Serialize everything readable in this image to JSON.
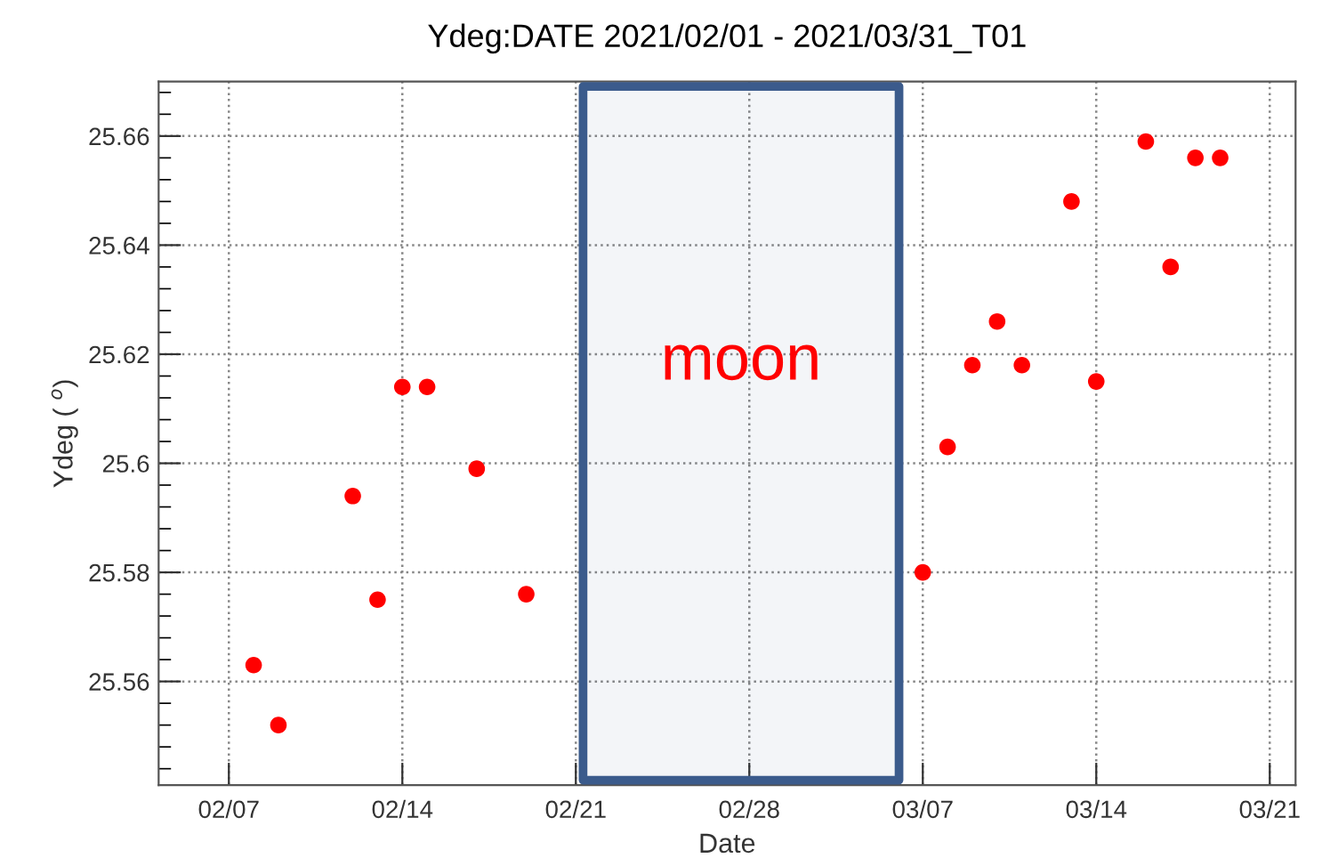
{
  "chart_data": {
    "type": "scatter",
    "title": "Ydeg:DATE 2021/02/01 - 2021/03/31_T01",
    "xlabel": "Date",
    "ylabel": "Ydeg ( $^{o}$)",
    "x": [
      "2021-02-08",
      "2021-02-09",
      "2021-02-12",
      "2021-02-13",
      "2021-02-14",
      "2021-02-15",
      "2021-02-17",
      "2021-02-19",
      "2021-03-07",
      "2021-03-08",
      "2021-03-09",
      "2021-03-10",
      "2021-03-11",
      "2021-03-13",
      "2021-03-14",
      "2021-03-16",
      "2021-03-17",
      "2021-03-18",
      "2021-03-19"
    ],
    "series": [
      {
        "color": "#ff0000",
        "values": [
          25.563,
          25.552,
          25.594,
          25.575,
          25.614,
          25.614,
          25.599,
          25.576,
          25.58,
          25.603,
          25.618,
          25.626,
          25.618,
          25.648,
          25.615,
          25.659,
          25.636,
          25.656,
          25.656
        ]
      }
    ],
    "marker": "circle",
    "xlim": [
      "2021-02-04T04:00",
      "2021-03-22T01:00"
    ],
    "xticks": [
      {
        "value": "2021-02-07",
        "label": "02/07"
      },
      {
        "value": "2021-02-14",
        "label": "02/14"
      },
      {
        "value": "2021-02-21",
        "label": "02/21"
      },
      {
        "value": "2021-02-28",
        "label": "02/28"
      },
      {
        "value": "2021-03-07",
        "label": "03/07"
      },
      {
        "value": "2021-03-14",
        "label": "03/14"
      },
      {
        "value": "2021-03-21",
        "label": "03/21"
      }
    ],
    "ylim": [
      25.541,
      25.67
    ],
    "yticks": [
      25.56,
      25.58,
      25.6,
      25.62,
      25.64,
      25.66
    ],
    "grid": true,
    "bands": [
      {
        "axis": "x",
        "from": "2021-02-21T07:00",
        "to": "2021-03-06T01:00",
        "label": "moon",
        "color": "#3b5b8c"
      }
    ]
  }
}
